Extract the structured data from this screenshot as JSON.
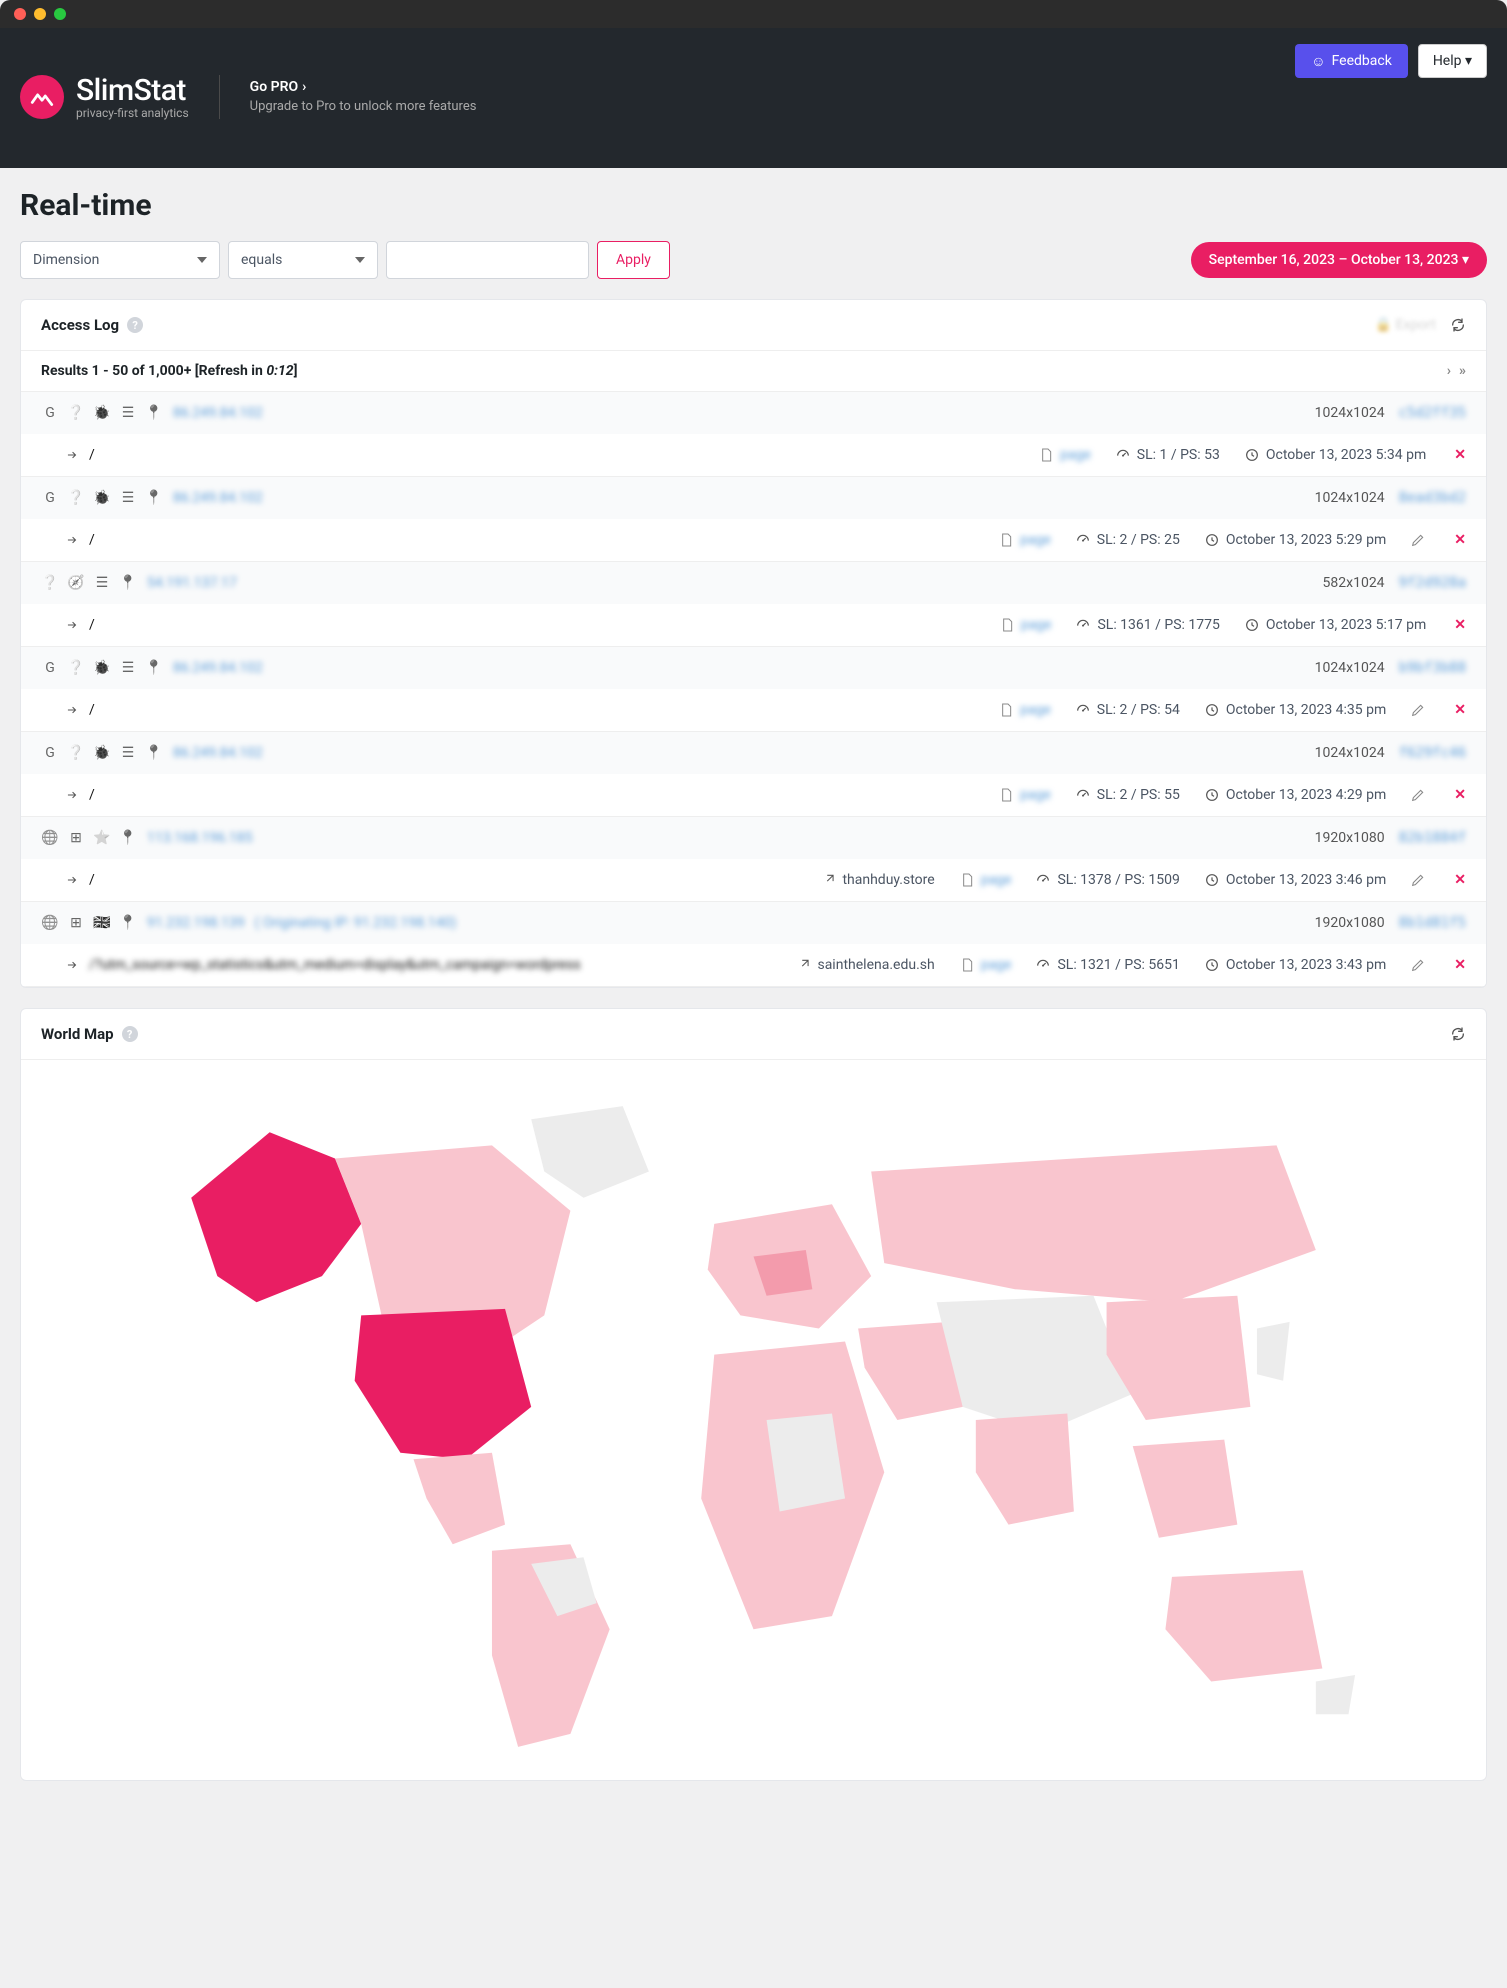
{
  "window": {
    "traffic_lights": [
      "#ff5f57",
      "#febc2e",
      "#28c840"
    ]
  },
  "header": {
    "feedback": "Feedback",
    "help": "Help ▾",
    "logo_title": "SlimStat",
    "logo_sub": "privacy-first analytics",
    "promo_title": "Go PRO",
    "promo_sub": "Upgrade to Pro to unlock more features"
  },
  "page": {
    "title": "Real-time"
  },
  "filters": {
    "dimension": "Dimension",
    "operator": "equals",
    "apply": "Apply",
    "date_range": "September 16, 2023 – October 13, 2023  ▾"
  },
  "accesslog": {
    "title": "Access Log",
    "export": "Export",
    "results_label": "Results 1 - 50 of 1,000+ [Refresh in ",
    "countdown": "0:12",
    "results_suffix": "]",
    "rows": [
      {
        "grey": true,
        "icons": [
          "G",
          "?",
          "bug",
          "bars",
          "pin"
        ],
        "ip": "86.249.84.102",
        "res": "1024x1024",
        "hash": "c5d2ff35",
        "path": "/",
        "page": "page",
        "sl": "SL: 1 / PS: 53",
        "ts": "October 13, 2023 5:34 pm"
      },
      {
        "grey": true,
        "icons": [
          "G",
          "?",
          "bug",
          "bars",
          "pin"
        ],
        "ip": "86.249.84.102",
        "res": "1024x1024",
        "hash": "8ead3bd2",
        "path": "/",
        "page": "page",
        "sl": "SL: 2 / PS: 25",
        "ts": "October 13, 2023 5:29 pm",
        "edit": true
      },
      {
        "grey": true,
        "icons": [
          "?",
          "safari",
          "bars",
          "pin"
        ],
        "ip": "54.191.137.17",
        "res": "582x1024",
        "hash": "9f2d928a",
        "path": "/",
        "page": "page",
        "sl": "SL: 1361 / PS: 1775",
        "ts": "October 13, 2023 5:17 pm"
      },
      {
        "grey": true,
        "icons": [
          "G",
          "?",
          "bug",
          "bars",
          "pin"
        ],
        "ip": "86.249.84.102",
        "res": "1024x1024",
        "hash": "b9bf3b88",
        "path": "/",
        "page": "page",
        "sl": "SL: 2 / PS: 54",
        "ts": "October 13, 2023 4:35 pm",
        "edit": true
      },
      {
        "grey": true,
        "icons": [
          "G",
          "?",
          "bug",
          "bars",
          "pin"
        ],
        "ip": "86.249.84.102",
        "res": "1024x1024",
        "hash": "f629fc46",
        "path": "/",
        "page": "page",
        "sl": "SL: 2 / PS: 55",
        "ts": "October 13, 2023 4:29 pm",
        "edit": true
      },
      {
        "grey": true,
        "icons": [
          "globe",
          "win",
          "star",
          "pin"
        ],
        "ip": "113.168.196.185",
        "res": "1920x1080",
        "hash": "82b1884f",
        "path": "/",
        "ref": "thanhduy.store",
        "page": "page",
        "sl": "SL: 1378 / PS: 1509",
        "ts": "October 13, 2023 3:46 pm",
        "edit": true
      },
      {
        "grey": true,
        "icons": [
          "globe",
          "win",
          "ukflag",
          "pin"
        ],
        "ip": "91.232.198.139",
        "ip_extra": "( Originating IP: 91.232.198.140)",
        "res": "1920x1080",
        "hash": "8b1d81f5",
        "path": "/?utm_source=wp_statistics&utm_medium=display&utm_campaign=wordpress",
        "ref": "sainthelena.edu.sh",
        "page": "page",
        "sl": "SL: 1321 / PS: 5651",
        "ts": "October 13, 2023 3:43 pm",
        "edit": true
      }
    ]
  },
  "worldmap": {
    "title": "World Map"
  },
  "colors": {
    "brand": "#e91e63",
    "feedback": "#5850ec",
    "map_none": "#ececec",
    "map_low": "#f9c5ce",
    "map_mid": "#f39bac",
    "map_high": "#e91e63"
  }
}
